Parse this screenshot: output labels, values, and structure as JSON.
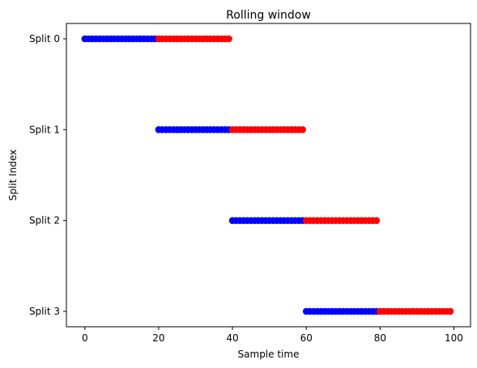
{
  "chart_data": {
    "type": "scatter",
    "title": "Rolling window",
    "xlabel": "Sample time",
    "ylabel": "Split Index",
    "xlim": [
      -5,
      104.5
    ],
    "xticks": [
      0,
      20,
      40,
      60,
      80,
      100
    ],
    "categories": [
      "Split 0",
      "Split 1",
      "Split 2",
      "Split 3"
    ],
    "grid": false,
    "colors": {
      "train": "#0000ff",
      "test": "#ff0000"
    },
    "splits": [
      {
        "label": "Split 0",
        "train_range": [
          0,
          19
        ],
        "test_range": [
          20,
          39
        ]
      },
      {
        "label": "Split 1",
        "train_range": [
          20,
          39
        ],
        "test_range": [
          40,
          59
        ]
      },
      {
        "label": "Split 2",
        "train_range": [
          40,
          59
        ],
        "test_range": [
          60,
          79
        ]
      },
      {
        "label": "Split 3",
        "train_range": [
          60,
          79
        ],
        "test_range": [
          80,
          99
        ]
      }
    ]
  }
}
